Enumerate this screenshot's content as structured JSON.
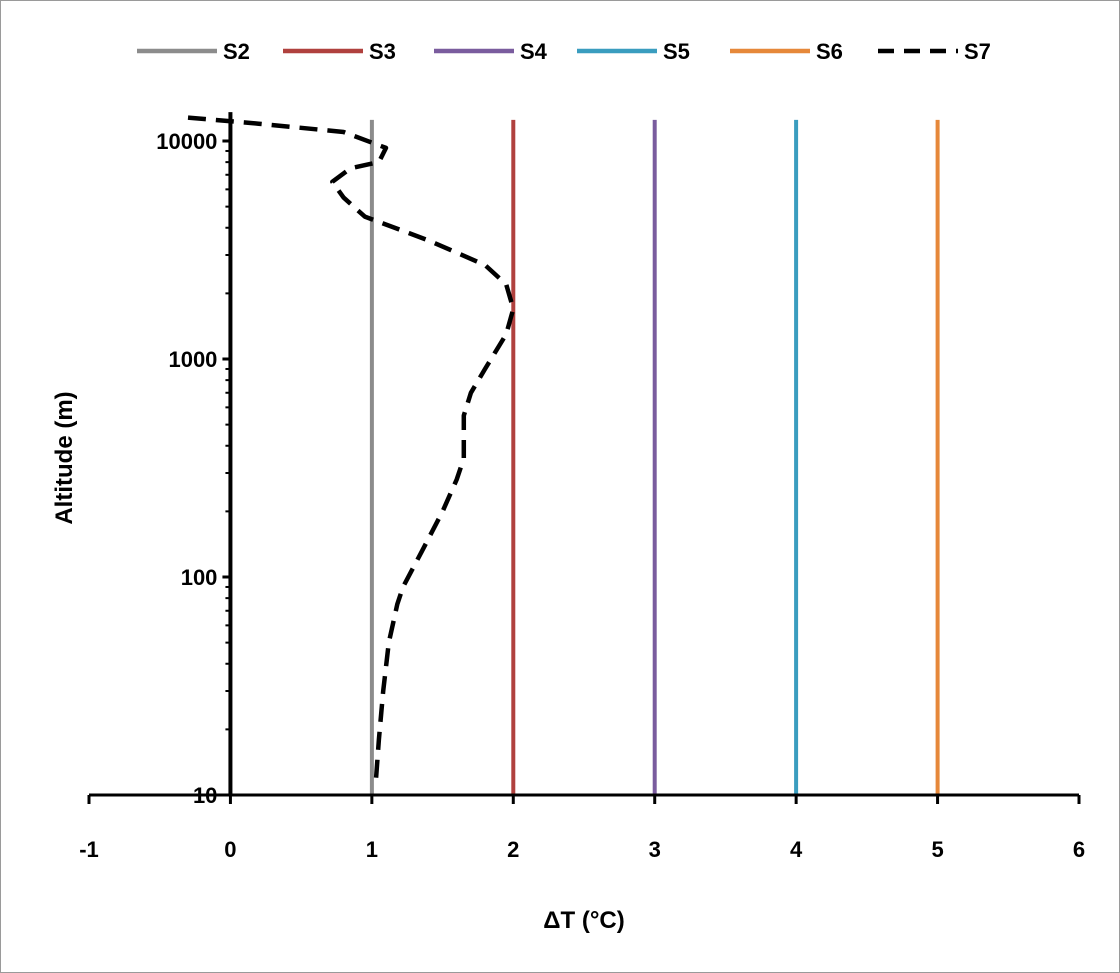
{
  "chart_data": {
    "type": "line",
    "xlabel": "ΔT (°C)",
    "ylabel": "Altitude (m)",
    "xlim": [
      -1,
      6
    ],
    "ylim": [
      10,
      13000
    ],
    "yscale": "log",
    "x_ticks": [
      "-1",
      "0",
      "1",
      "2",
      "3",
      "4",
      "5",
      "6"
    ],
    "y_ticks": [
      "10",
      "100",
      "1000",
      "10000"
    ],
    "legend_position": "top",
    "grid": false,
    "series": [
      {
        "name": "S2",
        "color": "#8c8c8c",
        "style": "solid",
        "x": [
          1,
          1
        ],
        "y": [
          10,
          12500
        ]
      },
      {
        "name": "S3",
        "color": "#b0413e",
        "style": "solid",
        "x": [
          2,
          2
        ],
        "y": [
          10,
          12500
        ]
      },
      {
        "name": "S4",
        "color": "#7a5c9e",
        "style": "solid",
        "x": [
          3,
          3
        ],
        "y": [
          10,
          12500
        ]
      },
      {
        "name": "S5",
        "color": "#3a9dbf",
        "style": "solid",
        "x": [
          4,
          4
        ],
        "y": [
          10,
          12500
        ]
      },
      {
        "name": "S6",
        "color": "#e6883a",
        "style": "solid",
        "x": [
          5,
          5
        ],
        "y": [
          10,
          12500
        ]
      },
      {
        "name": "S7",
        "color": "#000000",
        "style": "dashed",
        "x": [
          1.03,
          1.05,
          1.08,
          1.12,
          1.18,
          1.22,
          1.35,
          1.5,
          1.6,
          1.65,
          1.65,
          1.65,
          1.7,
          1.8,
          1.95,
          2.0,
          1.95,
          1.8,
          1.4,
          0.95,
          0.8,
          0.72,
          0.85,
          1.05,
          1.1,
          0.8,
          0.2,
          -0.3
        ],
        "y": [
          12,
          18,
          30,
          50,
          75,
          90,
          130,
          200,
          280,
          350,
          450,
          550,
          700,
          900,
          1300,
          1700,
          2200,
          2700,
          3500,
          4500,
          5500,
          6500,
          7500,
          8000,
          9300,
          11000,
          12000,
          12800
        ]
      }
    ],
    "reference_line": {
      "x": 0,
      "color": "#000000"
    }
  }
}
